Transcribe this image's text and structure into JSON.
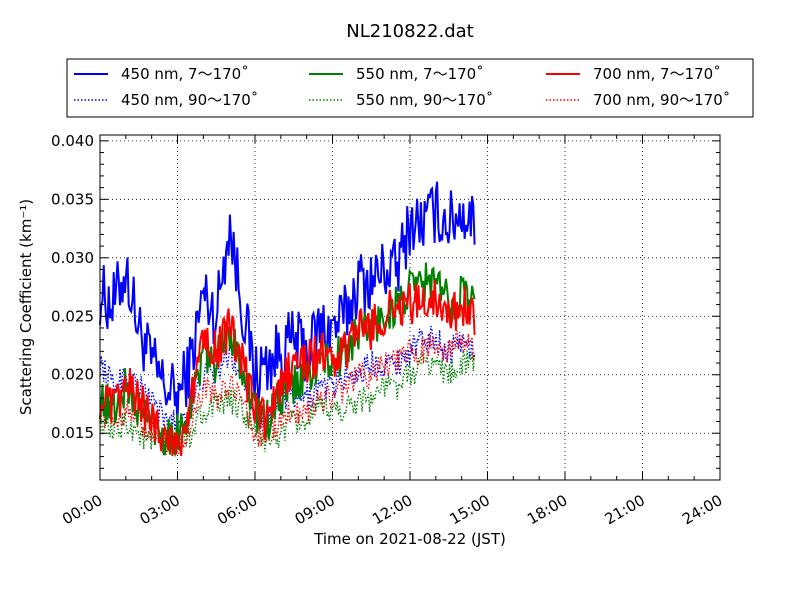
{
  "chart_data": {
    "type": "line",
    "title": "NL210822.dat",
    "xlabel": "Time on 2021-08-22 (JST)",
    "ylabel": "Scattering Coefficient (km⁻¹)",
    "x_unit": "hours",
    "xlim": [
      0,
      24
    ],
    "ylim": [
      0.011,
      0.0405
    ],
    "grid": true,
    "legend_position": "top (above plot)",
    "x_ticks": [
      "00:00",
      "03:00",
      "06:00",
      "09:00",
      "12:00",
      "15:00",
      "18:00",
      "21:00",
      "24:00"
    ],
    "y_ticks": [
      "0.015",
      "0.020",
      "0.025",
      "0.030",
      "0.035",
      "0.040"
    ],
    "x": [
      0.0,
      0.5,
      1.0,
      1.5,
      2.0,
      2.5,
      3.0,
      3.5,
      4.0,
      4.5,
      5.0,
      5.5,
      6.0,
      6.5,
      7.0,
      7.5,
      8.0,
      8.5,
      9.0,
      9.5,
      10.0,
      10.5,
      11.0,
      11.5,
      12.0,
      12.5,
      13.0,
      13.5,
      14.0,
      14.5
    ],
    "series": [
      {
        "name": "450 nm, 7～170˚",
        "color": "#0000ff",
        "style": "solid",
        "values": [
          0.027,
          0.026,
          0.029,
          0.024,
          0.021,
          0.019,
          0.018,
          0.021,
          0.027,
          0.025,
          0.033,
          0.026,
          0.02,
          0.021,
          0.022,
          0.023,
          0.022,
          0.024,
          0.024,
          0.025,
          0.028,
          0.028,
          0.029,
          0.029,
          0.033,
          0.033,
          0.034,
          0.033,
          0.034,
          0.033
        ]
      },
      {
        "name": "450 nm, 90～170˚",
        "color": "#0000ff",
        "style": "dotted",
        "values": [
          0.021,
          0.019,
          0.02,
          0.019,
          0.018,
          0.016,
          0.016,
          0.017,
          0.02,
          0.02,
          0.022,
          0.02,
          0.017,
          0.016,
          0.018,
          0.018,
          0.018,
          0.019,
          0.019,
          0.02,
          0.02,
          0.021,
          0.021,
          0.021,
          0.022,
          0.023,
          0.023,
          0.022,
          0.023,
          0.022
        ]
      },
      {
        "name": "550 nm, 7～170˚",
        "color": "#008000",
        "style": "solid",
        "values": [
          0.018,
          0.017,
          0.019,
          0.017,
          0.016,
          0.015,
          0.015,
          0.017,
          0.022,
          0.021,
          0.024,
          0.021,
          0.017,
          0.016,
          0.018,
          0.019,
          0.02,
          0.021,
          0.021,
          0.022,
          0.024,
          0.024,
          0.025,
          0.026,
          0.027,
          0.028,
          0.028,
          0.026,
          0.027,
          0.026
        ]
      },
      {
        "name": "550 nm, 90～170˚",
        "color": "#008000",
        "style": "dotted",
        "values": [
          0.016,
          0.015,
          0.016,
          0.015,
          0.014,
          0.014,
          0.014,
          0.015,
          0.017,
          0.017,
          0.018,
          0.017,
          0.015,
          0.014,
          0.015,
          0.016,
          0.016,
          0.017,
          0.017,
          0.017,
          0.018,
          0.018,
          0.019,
          0.019,
          0.02,
          0.021,
          0.021,
          0.02,
          0.021,
          0.021
        ]
      },
      {
        "name": "700 nm, 7～170˚",
        "color": "#ff0000",
        "style": "solid",
        "values": [
          0.018,
          0.017,
          0.019,
          0.018,
          0.016,
          0.015,
          0.014,
          0.017,
          0.024,
          0.022,
          0.024,
          0.021,
          0.017,
          0.016,
          0.019,
          0.021,
          0.021,
          0.022,
          0.021,
          0.022,
          0.024,
          0.024,
          0.025,
          0.026,
          0.026,
          0.026,
          0.027,
          0.025,
          0.026,
          0.025
        ]
      },
      {
        "name": "700 nm, 90～170˚",
        "color": "#ff0000",
        "style": "dotted",
        "values": [
          0.017,
          0.016,
          0.017,
          0.016,
          0.015,
          0.014,
          0.014,
          0.015,
          0.019,
          0.018,
          0.019,
          0.018,
          0.015,
          0.015,
          0.016,
          0.017,
          0.017,
          0.018,
          0.018,
          0.019,
          0.02,
          0.02,
          0.021,
          0.021,
          0.022,
          0.022,
          0.023,
          0.022,
          0.023,
          0.022
        ]
      }
    ]
  }
}
